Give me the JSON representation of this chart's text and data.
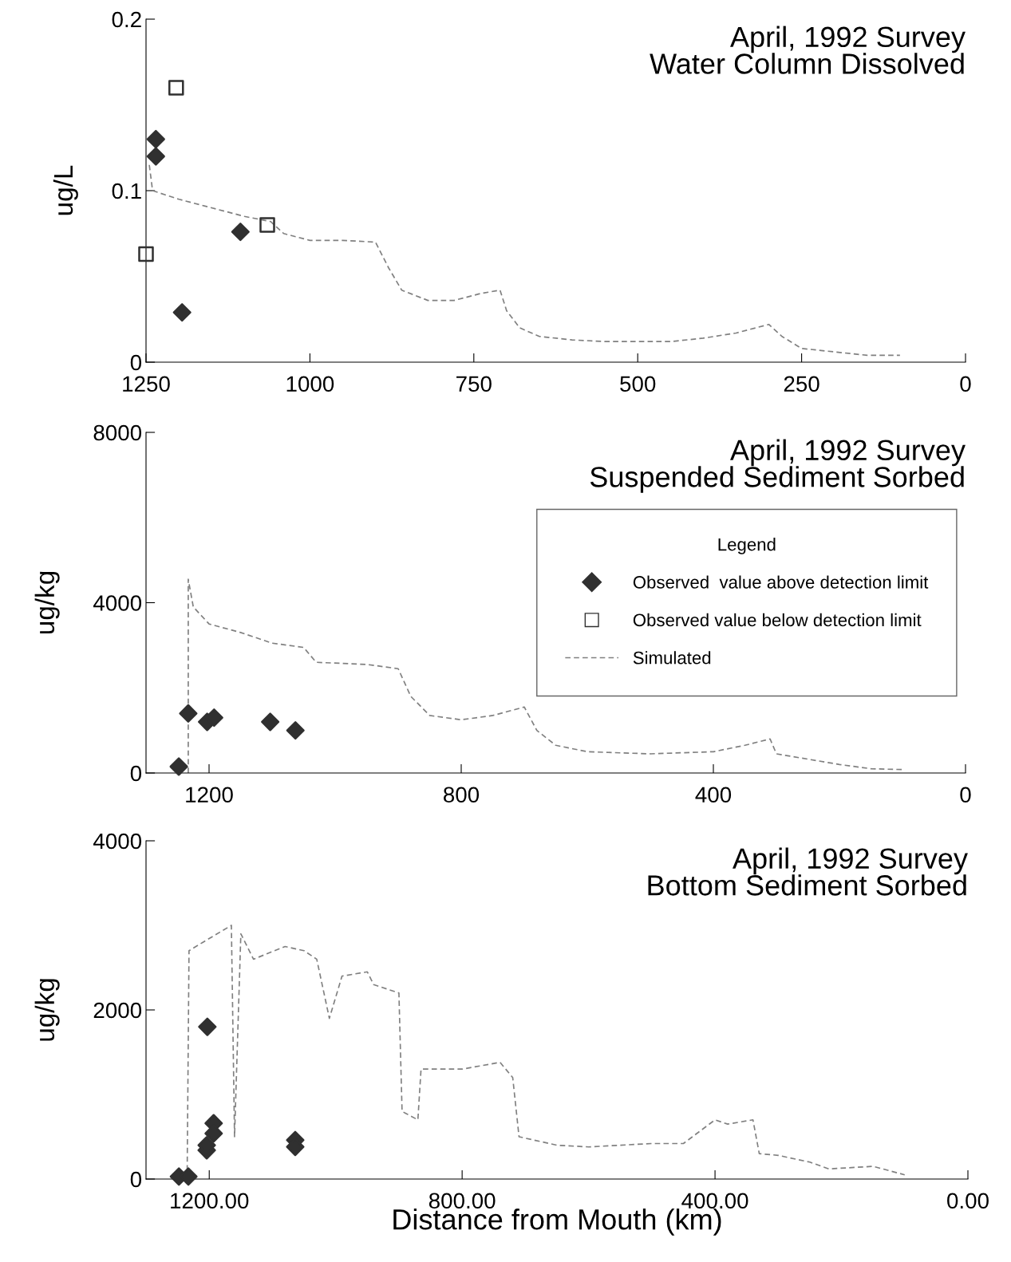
{
  "chart_data": [
    {
      "type": "scatter",
      "title": "April, 1992 Survey\nWater Column Dissolved",
      "ylabel": "ug/L",
      "xlim": [
        1250,
        0
      ],
      "ylim": [
        0,
        0.2
      ],
      "xticks": [
        1250,
        1000,
        750,
        500,
        250,
        0
      ],
      "yticks": [
        0,
        0.1,
        0.2
      ],
      "grid": false,
      "legend": false,
      "series": [
        {
          "marker": "diamond",
          "color": "#303030",
          "x": [
            1235,
            1235,
            1106,
            1195
          ],
          "values": [
            0.13,
            0.12,
            0.076,
            0.029
          ]
        },
        {
          "marker": "square",
          "color": "#303030",
          "x": [
            1204,
            1065,
            1250
          ],
          "values": [
            0.16,
            0.08,
            0.063
          ]
        },
        {
          "type": "line",
          "line_style": "dashed",
          "color": "#808080",
          "x": [
            1245,
            1240,
            1200,
            1150,
            1100,
            1060,
            1040,
            1000,
            950,
            900,
            880,
            860,
            820,
            780,
            740,
            710,
            700,
            680,
            650,
            600,
            550,
            500,
            450,
            400,
            350,
            300,
            280,
            250,
            200,
            150,
            100
          ],
          "values": [
            0.115,
            0.1,
            0.095,
            0.09,
            0.085,
            0.082,
            0.075,
            0.071,
            0.071,
            0.07,
            0.055,
            0.042,
            0.036,
            0.036,
            0.04,
            0.042,
            0.03,
            0.02,
            0.015,
            0.013,
            0.012,
            0.012,
            0.012,
            0.014,
            0.017,
            0.022,
            0.015,
            0.008,
            0.006,
            0.004,
            0.004
          ]
        }
      ]
    },
    {
      "type": "scatter",
      "title": "April, 1992 Survey\nSuspended Sediment Sorbed",
      "ylabel": "ug/kg",
      "legend_title": "Legend",
      "xlim": [
        1300,
        0
      ],
      "ylim": [
        0,
        8000
      ],
      "xticks": [
        1200,
        800,
        400,
        0
      ],
      "yticks": [
        0,
        4000,
        8000
      ],
      "grid": false,
      "legend": "right",
      "series": [
        {
          "name": "Observed  value above detection limit",
          "marker": "diamond",
          "color": "#303030",
          "x": [
            1248,
            1233,
            1203,
            1192,
            1103,
            1063
          ],
          "values": [
            150,
            1400,
            1200,
            1300,
            1200,
            1000
          ]
        },
        {
          "name": "Observed value below detection limit",
          "marker": "square",
          "color": "#303030",
          "x": [
            null
          ],
          "values": [
            null
          ]
        },
        {
          "type": "line",
          "name": "Simulated",
          "line_style": "dashed",
          "color": "#808080",
          "x": [
            1233,
            1233,
            1225,
            1200,
            1150,
            1100,
            1050,
            1030,
            950,
            900,
            880,
            850,
            800,
            750,
            700,
            680,
            650,
            600,
            500,
            400,
            350,
            310,
            300,
            200,
            150,
            100
          ],
          "values": [
            0,
            4550,
            3900,
            3500,
            3300,
            3050,
            2950,
            2600,
            2550,
            2450,
            1800,
            1350,
            1250,
            1350,
            1550,
            1000,
            650,
            500,
            450,
            500,
            650,
            800,
            450,
            200,
            100,
            80
          ]
        }
      ]
    },
    {
      "type": "scatter",
      "title": "April, 1992 Survey\nBottom Sediment Sorbed",
      "ylabel": "ug/kg",
      "xlabel": "Distance from Mouth (km)",
      "xlim": [
        1300,
        0
      ],
      "ylim": [
        0,
        4000
      ],
      "xticks": [
        {
          "value": 1200,
          "label": "1200.00"
        },
        {
          "value": 800,
          "label": "800.00"
        },
        {
          "value": 400,
          "label": "400.00"
        },
        {
          "value": 0,
          "label": "0.00"
        }
      ],
      "yticks": [
        0,
        2000,
        4000
      ],
      "grid": false,
      "legend": false,
      "series": [
        {
          "marker": "diamond",
          "color": "#303030",
          "x": [
            1248,
            1233,
            1203,
            1193,
            1193,
            1204,
            1204,
            1064,
            1064
          ],
          "values": [
            30,
            30,
            1800,
            660,
            540,
            340,
            400,
            460,
            380
          ]
        },
        {
          "type": "line",
          "line_style": "dashed",
          "color": "#808080",
          "x": [
            1235,
            1232,
            1210,
            1165,
            1160,
            1150,
            1130,
            1080,
            1050,
            1030,
            1010,
            990,
            950,
            940,
            900,
            895,
            870,
            865,
            800,
            740,
            720,
            710,
            650,
            600,
            500,
            450,
            400,
            380,
            340,
            330,
            300,
            250,
            220,
            150,
            100
          ],
          "values": [
            0,
            2700,
            2800,
            3000,
            500,
            2900,
            2600,
            2750,
            2700,
            2600,
            1900,
            2400,
            2450,
            2300,
            2200,
            800,
            700,
            1300,
            1300,
            1380,
            1200,
            500,
            400,
            380,
            420,
            420,
            700,
            650,
            700,
            300,
            280,
            200,
            120,
            150,
            50
          ]
        }
      ]
    }
  ]
}
